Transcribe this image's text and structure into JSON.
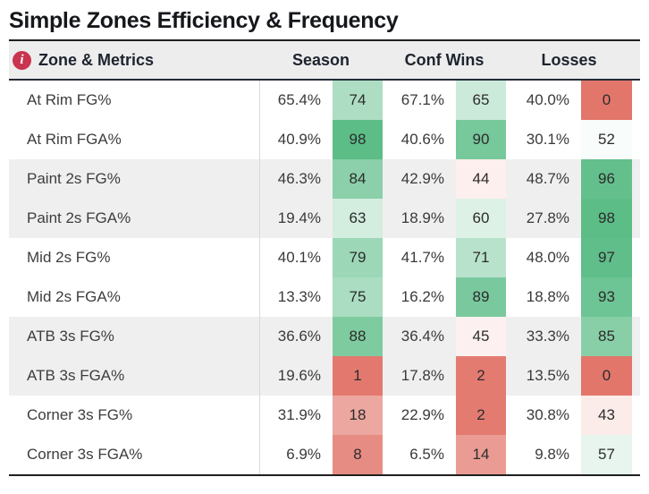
{
  "title": "Simple Zones Efficiency & Frequency",
  "header": {
    "info_icon": "i",
    "row_header": "Zone & Metrics",
    "column_groups": [
      "Season",
      "Conf Wins",
      "Losses"
    ]
  },
  "colors": {
    "scale_low_red": "#e2766b",
    "scale_mid_white": "#ffffff",
    "scale_high_green": "#55ba82",
    "info_icon_bg": "#c9344e",
    "header_bg": "#ededed",
    "row_alt_bg": "#efefef",
    "border_dark": "#1f1f1f"
  },
  "chart_data": {
    "type": "table",
    "title": "Simple Zones Efficiency & Frequency",
    "row_header": "Zone & Metrics",
    "column_groups": [
      "Season",
      "Conf Wins",
      "Losses"
    ],
    "columns": [
      "Season %",
      "Season Rank",
      "Conf Wins %",
      "Conf Wins Rank",
      "Losses %",
      "Losses Rank"
    ],
    "color_encoding": "rank cells: 0=red, 50=white, 100=green (diverging)",
    "rows": [
      {
        "label": "At Rim FG%",
        "cells": [
          {
            "pct": "65.4%",
            "rank": 74
          },
          {
            "pct": "67.1%",
            "rank": 65
          },
          {
            "pct": "40.0%",
            "rank": 0
          }
        ]
      },
      {
        "label": "At Rim FGA%",
        "cells": [
          {
            "pct": "40.9%",
            "rank": 98
          },
          {
            "pct": "40.6%",
            "rank": 90
          },
          {
            "pct": "30.1%",
            "rank": 52
          }
        ]
      },
      {
        "label": "Paint 2s FG%",
        "cells": [
          {
            "pct": "46.3%",
            "rank": 84
          },
          {
            "pct": "42.9%",
            "rank": 44
          },
          {
            "pct": "48.7%",
            "rank": 96
          }
        ]
      },
      {
        "label": "Paint 2s FGA%",
        "cells": [
          {
            "pct": "19.4%",
            "rank": 63
          },
          {
            "pct": "18.9%",
            "rank": 60
          },
          {
            "pct": "27.8%",
            "rank": 98
          }
        ]
      },
      {
        "label": "Mid 2s FG%",
        "cells": [
          {
            "pct": "40.1%",
            "rank": 79
          },
          {
            "pct": "41.7%",
            "rank": 71
          },
          {
            "pct": "48.0%",
            "rank": 97
          }
        ]
      },
      {
        "label": "Mid 2s FGA%",
        "cells": [
          {
            "pct": "13.3%",
            "rank": 75
          },
          {
            "pct": "16.2%",
            "rank": 89
          },
          {
            "pct": "18.8%",
            "rank": 93
          }
        ]
      },
      {
        "label": "ATB 3s FG%",
        "cells": [
          {
            "pct": "36.6%",
            "rank": 88
          },
          {
            "pct": "36.4%",
            "rank": 45
          },
          {
            "pct": "33.3%",
            "rank": 85
          }
        ]
      },
      {
        "label": "ATB 3s FGA%",
        "cells": [
          {
            "pct": "19.6%",
            "rank": 1
          },
          {
            "pct": "17.8%",
            "rank": 2
          },
          {
            "pct": "13.5%",
            "rank": 0
          }
        ]
      },
      {
        "label": "Corner 3s FG%",
        "cells": [
          {
            "pct": "31.9%",
            "rank": 18
          },
          {
            "pct": "22.9%",
            "rank": 2
          },
          {
            "pct": "30.8%",
            "rank": 43
          }
        ]
      },
      {
        "label": "Corner 3s FGA%",
        "cells": [
          {
            "pct": "6.9%",
            "rank": 8
          },
          {
            "pct": "6.5%",
            "rank": 14
          },
          {
            "pct": "9.8%",
            "rank": 57
          }
        ]
      }
    ]
  }
}
